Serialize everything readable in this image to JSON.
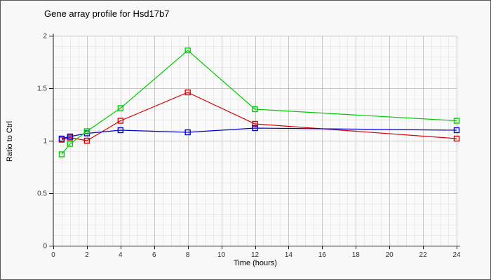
{
  "window": {
    "background": "#f8f8f8",
    "border_color": "#58585a"
  },
  "chart_data": {
    "type": "line",
    "title": "Gene array profile for Hsd17b7",
    "xlabel": "Time (hours)",
    "ylabel": "Ratio to Ctrl",
    "xlim": [
      0,
      24
    ],
    "ylim": [
      0,
      2
    ],
    "x_tick_values": [
      0,
      2,
      4,
      6,
      8,
      10,
      12,
      14,
      16,
      18,
      20,
      22,
      24
    ],
    "x_tick_labels": [
      "0",
      "2",
      "4",
      "6",
      "8",
      "10",
      "12",
      "14",
      "16",
      "18",
      "20",
      "22",
      "24"
    ],
    "y_tick_values": [
      0,
      0.5,
      1,
      1.5,
      2
    ],
    "y_tick_labels": [
      "0",
      "0.5",
      "1",
      "1.5",
      "2"
    ],
    "grid": {
      "on": true,
      "x_minor_step": 0.5,
      "x_major_step": 2,
      "y_minor_step": 0.1,
      "y_major_step": 0.5,
      "minor_color": "#ebebeb",
      "major_color": "#c6c6c6",
      "plot_background": "#fafafa"
    },
    "axis_color": "#1a1a1a",
    "text_color": "#333333",
    "title_color": "#2b2b2b",
    "marker": "open-square",
    "legend": "none",
    "x": [
      0.5,
      1,
      2,
      4,
      8,
      12,
      24
    ],
    "series": [
      {
        "name": "red",
        "color": "#d40000",
        "values": [
          1.01,
          1.03,
          1.0,
          1.19,
          1.46,
          1.16,
          1.02
        ]
      },
      {
        "name": "blue",
        "color": "#0000cc",
        "values": [
          1.02,
          1.04,
          1.07,
          1.1,
          1.08,
          1.12,
          1.1
        ]
      },
      {
        "name": "green",
        "color": "#00cc00",
        "values": [
          0.87,
          0.97,
          1.09,
          1.31,
          1.86,
          1.3,
          1.19
        ]
      }
    ]
  }
}
